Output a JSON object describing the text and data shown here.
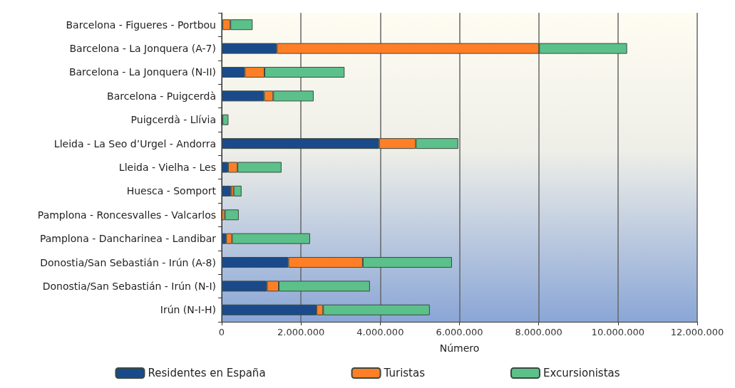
{
  "chart_data": {
    "type": "bar",
    "orientation": "horizontal",
    "stacked": true,
    "xlabel": "Número",
    "categories": [
      "Barcelona - Figueres - Portbou",
      "Barcelona - La Jonquera (A-7)",
      "Barcelona - La Jonquera (N-II)",
      "Barcelona - Puigcerdà",
      "Puigcerdà - Llívia",
      "Lleida - La Seo d’Urgel - Andorra",
      "Lleida - Vielha - Les",
      "Huesca - Somport",
      "Pamplona - Roncesvalles - Valcarlos",
      "Pamplona - Dancharinea - Landibar",
      "Donostia/San Sebastián - Irún (A-8)",
      "Donostia/San Sebastián - Irún (N-I)",
      "Irún (N-I-H)"
    ],
    "series": [
      {
        "name": "Residentes en España",
        "color": "#1a4a8a",
        "values": [
          20000,
          1390000,
          580000,
          1070000,
          0,
          3970000,
          160000,
          230000,
          0,
          110000,
          1680000,
          1140000,
          2390000
        ]
      },
      {
        "name": "Turistas",
        "color": "#ff7f27",
        "values": [
          200000,
          6620000,
          500000,
          230000,
          20000,
          930000,
          240000,
          70000,
          80000,
          150000,
          1880000,
          300000,
          170000
        ]
      },
      {
        "name": "Excursionistas",
        "color": "#5cc08a",
        "values": [
          560000,
          2220000,
          2020000,
          1020000,
          150000,
          1070000,
          1110000,
          200000,
          350000,
          1970000,
          2250000,
          2300000,
          2690000
        ]
      }
    ],
    "xlim": [
      0,
      12000000
    ],
    "xticks": [
      0,
      {
        "value": 2000000,
        "label": "2.000.000"
      },
      {
        "value": 4000000,
        "label": "4.000.000"
      },
      {
        "value": 6000000,
        "label": "6.000.000"
      },
      {
        "value": 8000000,
        "label": "8.000.000"
      },
      {
        "value": 10000000,
        "label": "10.000.000"
      },
      {
        "value": 12000000,
        "label": "12.000.000"
      }
    ],
    "grid": "x",
    "legend": "bottom"
  }
}
